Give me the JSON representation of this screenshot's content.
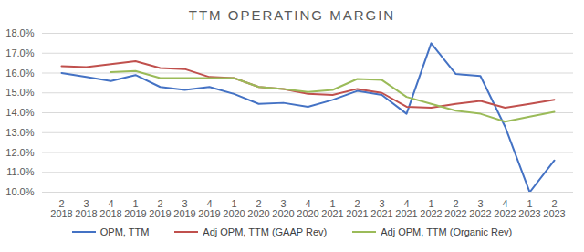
{
  "chart_data": {
    "type": "line",
    "title": "TTM OPERATING MARGIN",
    "categories": [
      "2\n2018",
      "3\n2018",
      "4\n2018",
      "1\n2019",
      "2\n2019",
      "3\n2019",
      "4\n2019",
      "1\n2020",
      "2\n2020",
      "3\n2020",
      "4\n2020",
      "1\n2021",
      "2\n2021",
      "3\n2021",
      "4\n2021",
      "1\n2022",
      "2\n2022",
      "3\n2022",
      "4\n2022",
      "1\n2023",
      "2\n2023"
    ],
    "series": [
      {
        "name": "OPM, TTM",
        "color": "#4472c4",
        "values": [
          16.0,
          15.8,
          15.6,
          15.9,
          15.3,
          15.15,
          15.3,
          14.95,
          14.45,
          14.5,
          14.3,
          14.65,
          15.1,
          14.9,
          13.95,
          17.5,
          15.95,
          15.85,
          13.3,
          10.0,
          11.6
        ]
      },
      {
        "name": "Adj OPM, TTM (GAAP Rev)",
        "color": "#c0504d",
        "values": [
          16.35,
          16.3,
          16.45,
          16.6,
          16.25,
          16.2,
          15.8,
          15.75,
          15.3,
          15.2,
          14.95,
          14.9,
          15.2,
          15.0,
          14.3,
          14.25,
          14.45,
          14.6,
          14.25,
          14.45,
          14.65
        ]
      },
      {
        "name": "Adj OPM, TTM (Organic Rev)",
        "color": "#9bbb59",
        "values": [
          null,
          null,
          16.05,
          16.1,
          15.75,
          15.75,
          15.75,
          15.75,
          15.3,
          15.2,
          15.05,
          15.15,
          15.7,
          15.65,
          14.8,
          14.45,
          14.1,
          13.95,
          13.55,
          13.8,
          14.05
        ]
      }
    ],
    "ylim": [
      10,
      18
    ],
    "yticks": [
      {
        "value": 10,
        "label": "10.0%"
      },
      {
        "value": 11,
        "label": "11.0%"
      },
      {
        "value": 12,
        "label": "12.0%"
      },
      {
        "value": 13,
        "label": "13.0%"
      },
      {
        "value": 14,
        "label": "14.0%"
      },
      {
        "value": 15,
        "label": "15.0%"
      },
      {
        "value": 16,
        "label": "16.0%"
      },
      {
        "value": 17,
        "label": "17.0%"
      },
      {
        "value": 18,
        "label": "18.0%"
      }
    ],
    "grid": true,
    "legend": "bottom"
  }
}
